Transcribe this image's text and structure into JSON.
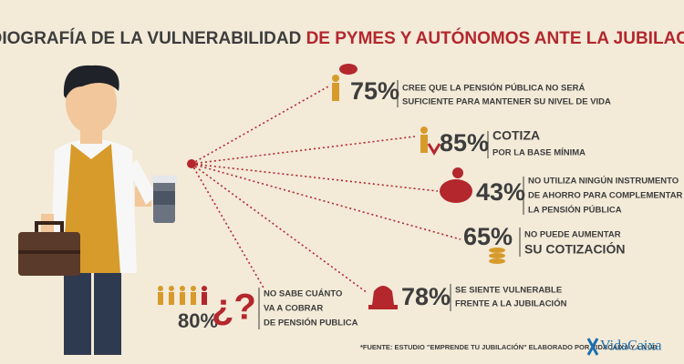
{
  "title": {
    "part1": "RADIOGRAFÍA DE LA VULNERABILIDAD",
    "part2": "DE PYMES Y AUTÓNOMOS ANTE LA JUBILACIÓN"
  },
  "stats": [
    {
      "percent": "75%",
      "lines": [
        "CREE QUE LA PENSIÓN PÚBLICA NO SERÁ",
        "SUFICIENTE PARA MANTENER SU NIVEL DE VIDA"
      ]
    },
    {
      "percent": "85%",
      "lines": [
        "COTIZA",
        "POR LA BASE MÍNIMA"
      ]
    },
    {
      "percent": "43%",
      "lines": [
        "NO UTILIZA NINGÚN INSTRUMENTO",
        "DE AHORRO PARA COMPLEMENTAR",
        "LA PENSIÓN PÚBLICA"
      ]
    },
    {
      "percent": "65%",
      "lines": [
        "NO PUEDE AUMENTAR",
        "SU COTIZACIÓN"
      ]
    },
    {
      "percent": "78%",
      "lines": [
        "SE SIENTE VULNERABLE",
        "FRENTE A LA JUBILACIÓN"
      ]
    },
    {
      "percent": "80%",
      "symbol": "¿?",
      "lines": [
        "NO SABE CUÁNTO",
        "VA A COBRAR",
        "DE PENSIÓN PUBLICA"
      ]
    }
  ],
  "footnote": "*FUENTE: ESTUDIO \"EMPRENDE TU JUBILACIÓN\" ELABORADO POR VIDACAIXA Y LA UB",
  "logo": "VidaCaixa"
}
